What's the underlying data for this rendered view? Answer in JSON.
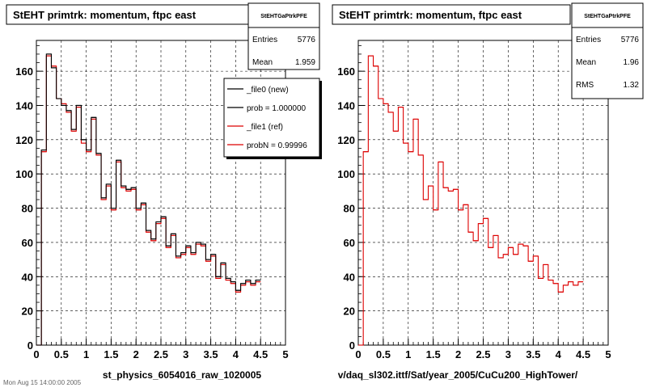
{
  "footer_text": "Mon Aug 15 14:00:00 2005",
  "colors": {
    "new": "#000000",
    "ref": "#dd0000",
    "grid": "#000000"
  },
  "chart_data": [
    {
      "type": "line",
      "title": "StEHT primtrk: momentum, ftpc east",
      "xlabel": "st_physics_6054016_raw_1020005",
      "xlim": [
        0,
        5
      ],
      "ylim": [
        0,
        178
      ],
      "x_ticks": [
        "0",
        "0.5",
        "1",
        "1.5",
        "2",
        "2.5",
        "3",
        "3.5",
        "4",
        "4.5",
        "5"
      ],
      "y_ticks": [
        "0",
        "20",
        "40",
        "60",
        "80",
        "100",
        "120",
        "140",
        "160"
      ],
      "grid": true,
      "stats": {
        "name": "StEHTGaPtrkPFE",
        "rows": [
          {
            "label": "Entries",
            "value": "5776"
          },
          {
            "label": "Mean",
            "value": "1.959"
          }
        ]
      },
      "legend": {
        "placement": "top-right",
        "entries": [
          {
            "label": "_file0 (new)",
            "color": "#000000"
          },
          {
            "label": "prob = 1.000000",
            "color": "#000000"
          },
          {
            "label": "_file1 (ref)",
            "color": "#dd0000"
          },
          {
            "label": "probN = 0.99996",
            "color": "#dd0000"
          }
        ]
      },
      "bin_width": 0.1,
      "series": [
        {
          "name": "_file0 (new)",
          "color": "#000000",
          "values": [
            0,
            114,
            170,
            162,
            144,
            140,
            137,
            126,
            140,
            120,
            114,
            133,
            112,
            86,
            94,
            80,
            108,
            93,
            91,
            92,
            80,
            83,
            67,
            62,
            72,
            75,
            58,
            65,
            52,
            54,
            58,
            54,
            60,
            59,
            50,
            53,
            40,
            48,
            39,
            37,
            32,
            36,
            38,
            36,
            38
          ]
        },
        {
          "name": "_file1 (ref)",
          "color": "#dd0000",
          "values": [
            0,
            113,
            169,
            163,
            144,
            141,
            136,
            125,
            139,
            118,
            113,
            132,
            111,
            85,
            93,
            79,
            107,
            92,
            90,
            91,
            79,
            82,
            66,
            61,
            71,
            74,
            57,
            64,
            51,
            53,
            57,
            53,
            59,
            58,
            49,
            52,
            39,
            47,
            38,
            36,
            31,
            35,
            37,
            35,
            37
          ]
        }
      ]
    },
    {
      "type": "line",
      "title": "StEHT primtrk: momentum, ftpc east",
      "xlabel": "v/daq_sl302.ittf/Sat/year_2005/CuCu200_HighTower/",
      "xlim": [
        0,
        5
      ],
      "ylim": [
        0,
        178
      ],
      "x_ticks": [
        "0",
        "0.5",
        "1",
        "1.5",
        "2",
        "2.5",
        "3",
        "3.5",
        "4",
        "4.5",
        "5"
      ],
      "y_ticks": [
        "0",
        "20",
        "40",
        "60",
        "80",
        "100",
        "120",
        "140",
        "160"
      ],
      "grid": true,
      "stats": {
        "name": "StEHTGaPtrkPFE",
        "rows": [
          {
            "label": "Entries",
            "value": "5776"
          },
          {
            "label": "Mean",
            "value": "1.96"
          },
          {
            "label": "RMS",
            "value": "1.32"
          }
        ]
      },
      "bin_width": 0.1,
      "series": [
        {
          "name": "",
          "color": "#dd0000",
          "values": [
            0,
            113,
            169,
            163,
            144,
            141,
            136,
            125,
            139,
            118,
            113,
            132,
            111,
            85,
            93,
            79,
            107,
            92,
            90,
            91,
            79,
            82,
            66,
            61,
            71,
            74,
            57,
            64,
            51,
            53,
            57,
            53,
            59,
            58,
            49,
            52,
            39,
            47,
            38,
            36,
            31,
            35,
            37,
            35,
            37
          ]
        }
      ]
    }
  ]
}
